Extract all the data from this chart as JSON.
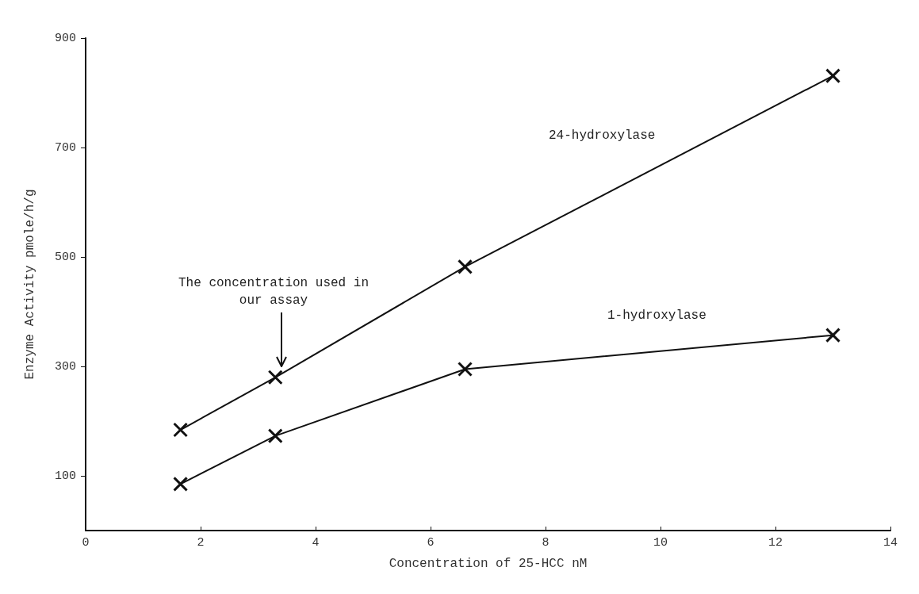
{
  "chart_data": {
    "type": "line",
    "xlabel": "Concentration of 25-HCC nM",
    "ylabel": "Enzyme Activity pmole/h/g",
    "x": [
      1.65,
      3.3,
      6.6,
      13
    ],
    "series": [
      {
        "name": "24-hydroxylase",
        "color": "#111111",
        "values": [
          184,
          280,
          482,
          831
        ]
      },
      {
        "name": "1-hydroxylase",
        "color": "#111111",
        "values": [
          85,
          173,
          295,
          357
        ]
      }
    ],
    "xlim": [
      0,
      14
    ],
    "xticks": [
      0,
      2,
      4,
      6,
      8,
      10,
      12,
      14
    ],
    "ylim": [
      0,
      900
    ],
    "yticks": [
      100,
      300,
      500,
      700,
      900
    ],
    "marker": "cross",
    "line_style": "solid",
    "grid": false,
    "legend": false,
    "annotations": [
      "The concentration used in our assay"
    ]
  }
}
